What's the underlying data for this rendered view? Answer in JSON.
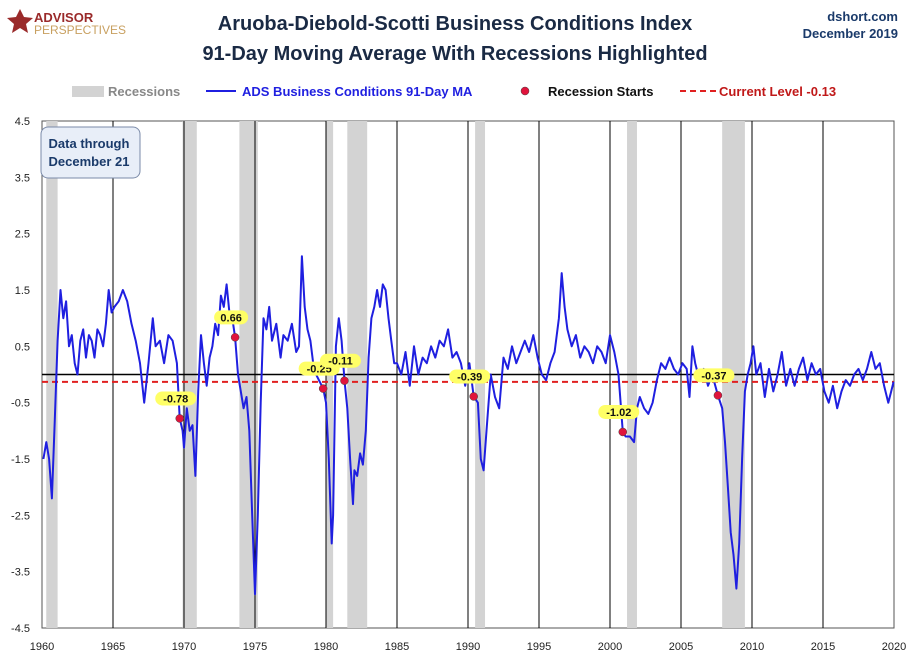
{
  "branding": {
    "logo_line1": "ADVISOR",
    "logo_line2": "PERSPECTIVES",
    "site": "dshort.com",
    "date": "December 2019"
  },
  "chart_data": {
    "type": "line",
    "title": "Aruoba-Diebold-Scotti Business Conditions Index",
    "subtitle": "91-Day Moving Average With Recessions Highlighted",
    "xlabel": "",
    "ylabel": "",
    "xlim": [
      1960,
      2020
    ],
    "ylim": [
      -4.5,
      4.5
    ],
    "x_ticks": [
      "1960",
      "1965",
      "1970",
      "1975",
      "1980",
      "1985",
      "1990",
      "1995",
      "2000",
      "2005",
      "2010",
      "2015",
      "2020"
    ],
    "y_ticks": [
      "4.5",
      "3.5",
      "2.5",
      "1.5",
      "0.5",
      "-0.5",
      "-1.5",
      "-2.5",
      "-3.5",
      "-4.5"
    ],
    "grid": "vertical",
    "legend_position": "top",
    "legend": {
      "recessions": "Recessions",
      "series": "ADS Business Conditions 91-Day MA",
      "starts": "Recession Starts",
      "current": "Current Level -0.13"
    },
    "annotation_box": {
      "line1": "Data through",
      "line2": "December 21"
    },
    "current_level": -0.13,
    "colors": {
      "series": "#1f1fe0",
      "recession": "#d3d3d3",
      "current": "#e02020",
      "start_marker": "#e0143c",
      "label_bg": "#ffff66"
    },
    "recessions": [
      [
        1960.3,
        1961.1
      ],
      [
        1969.9,
        1970.9
      ],
      [
        1973.9,
        1975.2
      ],
      [
        1980.0,
        1980.5
      ],
      [
        1981.5,
        1982.9
      ],
      [
        1990.5,
        1991.2
      ],
      [
        2001.2,
        2001.9
      ],
      [
        2007.9,
        2009.5
      ]
    ],
    "recession_starts": [
      {
        "year": 1969.7,
        "value": -0.78,
        "label": "-0.78"
      },
      {
        "year": 1973.6,
        "value": 0.66,
        "label": "0.66"
      },
      {
        "year": 1979.8,
        "value": -0.25,
        "label": "-0.25"
      },
      {
        "year": 1981.3,
        "value": -0.11,
        "label": "-0.11"
      },
      {
        "year": 1990.4,
        "value": -0.39,
        "label": "-0.39"
      },
      {
        "year": 2000.9,
        "value": -1.02,
        "label": "-1.02"
      },
      {
        "year": 2007.6,
        "value": -0.37,
        "label": "-0.37"
      }
    ],
    "series": [
      {
        "name": "ADS Business Conditions 91-Day MA",
        "points": [
          [
            1960.1,
            -1.5
          ],
          [
            1960.3,
            -1.2
          ],
          [
            1960.5,
            -1.5
          ],
          [
            1960.7,
            -2.2
          ],
          [
            1960.9,
            -0.8
          ],
          [
            1961.1,
            0.6
          ],
          [
            1961.3,
            1.5
          ],
          [
            1961.5,
            1.0
          ],
          [
            1961.7,
            1.3
          ],
          [
            1961.9,
            0.5
          ],
          [
            1962.1,
            0.7
          ],
          [
            1962.3,
            0.2
          ],
          [
            1962.5,
            0.0
          ],
          [
            1962.7,
            0.6
          ],
          [
            1962.9,
            0.8
          ],
          [
            1963.1,
            0.3
          ],
          [
            1963.3,
            0.7
          ],
          [
            1963.5,
            0.6
          ],
          [
            1963.7,
            0.3
          ],
          [
            1963.9,
            0.8
          ],
          [
            1964.1,
            0.7
          ],
          [
            1964.3,
            0.5
          ],
          [
            1964.5,
            0.9
          ],
          [
            1964.7,
            1.5
          ],
          [
            1964.9,
            1.1
          ],
          [
            1965.1,
            1.2
          ],
          [
            1965.4,
            1.3
          ],
          [
            1965.7,
            1.5
          ],
          [
            1966.0,
            1.3
          ],
          [
            1966.3,
            0.9
          ],
          [
            1966.6,
            0.6
          ],
          [
            1966.9,
            0.2
          ],
          [
            1967.2,
            -0.5
          ],
          [
            1967.5,
            0.2
          ],
          [
            1967.8,
            1.0
          ],
          [
            1968.0,
            0.5
          ],
          [
            1968.3,
            0.6
          ],
          [
            1968.6,
            0.2
          ],
          [
            1968.9,
            0.7
          ],
          [
            1969.2,
            0.6
          ],
          [
            1969.5,
            0.2
          ],
          [
            1969.7,
            -0.78
          ],
          [
            1969.9,
            -1.0
          ],
          [
            1970.0,
            -1.3
          ],
          [
            1970.2,
            -0.6
          ],
          [
            1970.4,
            -1.0
          ],
          [
            1970.6,
            -0.9
          ],
          [
            1970.8,
            -1.8
          ],
          [
            1971.0,
            -0.3
          ],
          [
            1971.2,
            0.7
          ],
          [
            1971.4,
            0.2
          ],
          [
            1971.6,
            -0.2
          ],
          [
            1971.8,
            0.3
          ],
          [
            1972.0,
            0.5
          ],
          [
            1972.2,
            0.9
          ],
          [
            1972.4,
            0.7
          ],
          [
            1972.6,
            1.4
          ],
          [
            1972.8,
            1.2
          ],
          [
            1973.0,
            1.6
          ],
          [
            1973.2,
            1.1
          ],
          [
            1973.4,
            1.0
          ],
          [
            1973.6,
            0.66
          ],
          [
            1973.8,
            0.0
          ],
          [
            1974.0,
            -0.3
          ],
          [
            1974.2,
            -0.6
          ],
          [
            1974.4,
            -0.4
          ],
          [
            1974.6,
            -1.0
          ],
          [
            1974.8,
            -2.5
          ],
          [
            1975.0,
            -3.9
          ],
          [
            1975.2,
            -2.5
          ],
          [
            1975.4,
            -0.5
          ],
          [
            1975.6,
            1.0
          ],
          [
            1975.8,
            0.8
          ],
          [
            1976.0,
            1.2
          ],
          [
            1976.2,
            0.6
          ],
          [
            1976.5,
            0.9
          ],
          [
            1976.8,
            0.3
          ],
          [
            1977.0,
            0.7
          ],
          [
            1977.3,
            0.6
          ],
          [
            1977.6,
            0.9
          ],
          [
            1977.9,
            0.4
          ],
          [
            1978.1,
            0.5
          ],
          [
            1978.3,
            2.1
          ],
          [
            1978.5,
            1.2
          ],
          [
            1978.7,
            0.8
          ],
          [
            1978.9,
            0.6
          ],
          [
            1979.1,
            0.2
          ],
          [
            1979.3,
            0.0
          ],
          [
            1979.5,
            -0.1
          ],
          [
            1979.8,
            -0.25
          ],
          [
            1980.0,
            -0.5
          ],
          [
            1980.2,
            -1.5
          ],
          [
            1980.4,
            -3.0
          ],
          [
            1980.5,
            -2.5
          ],
          [
            1980.7,
            0.5
          ],
          [
            1980.9,
            1.0
          ],
          [
            1981.1,
            0.6
          ],
          [
            1981.3,
            -0.11
          ],
          [
            1981.5,
            -0.6
          ],
          [
            1981.7,
            -1.5
          ],
          [
            1981.9,
            -2.3
          ],
          [
            1982.0,
            -1.7
          ],
          [
            1982.2,
            -1.8
          ],
          [
            1982.4,
            -1.4
          ],
          [
            1982.6,
            -1.6
          ],
          [
            1982.8,
            -1.0
          ],
          [
            1983.0,
            0.3
          ],
          [
            1983.2,
            1.0
          ],
          [
            1983.4,
            1.2
          ],
          [
            1983.6,
            1.5
          ],
          [
            1983.8,
            1.2
          ],
          [
            1984.0,
            1.6
          ],
          [
            1984.2,
            1.5
          ],
          [
            1984.4,
            1.0
          ],
          [
            1984.6,
            0.6
          ],
          [
            1984.8,
            0.2
          ],
          [
            1985.0,
            0.2
          ],
          [
            1985.3,
            0.0
          ],
          [
            1985.6,
            0.4
          ],
          [
            1985.9,
            -0.2
          ],
          [
            1986.2,
            0.5
          ],
          [
            1986.5,
            0.0
          ],
          [
            1986.8,
            0.3
          ],
          [
            1987.1,
            0.2
          ],
          [
            1987.4,
            0.5
          ],
          [
            1987.7,
            0.3
          ],
          [
            1988.0,
            0.6
          ],
          [
            1988.3,
            0.5
          ],
          [
            1988.6,
            0.8
          ],
          [
            1988.9,
            0.3
          ],
          [
            1989.2,
            0.4
          ],
          [
            1989.5,
            0.2
          ],
          [
            1989.8,
            -0.2
          ],
          [
            1990.1,
            0.2
          ],
          [
            1990.4,
            -0.39
          ],
          [
            1990.7,
            -0.5
          ],
          [
            1990.9,
            -1.5
          ],
          [
            1991.1,
            -1.7
          ],
          [
            1991.3,
            -1.0
          ],
          [
            1991.6,
            0.0
          ],
          [
            1991.9,
            -0.4
          ],
          [
            1992.2,
            -0.6
          ],
          [
            1992.5,
            0.3
          ],
          [
            1992.8,
            0.1
          ],
          [
            1993.1,
            0.5
          ],
          [
            1993.4,
            0.2
          ],
          [
            1993.7,
            0.4
          ],
          [
            1994.0,
            0.6
          ],
          [
            1994.3,
            0.4
          ],
          [
            1994.6,
            0.7
          ],
          [
            1994.9,
            0.3
          ],
          [
            1995.2,
            0.0
          ],
          [
            1995.5,
            -0.1
          ],
          [
            1995.8,
            0.2
          ],
          [
            1996.1,
            0.4
          ],
          [
            1996.4,
            1.0
          ],
          [
            1996.6,
            1.8
          ],
          [
            1996.8,
            1.2
          ],
          [
            1997.0,
            0.8
          ],
          [
            1997.3,
            0.5
          ],
          [
            1997.6,
            0.7
          ],
          [
            1997.9,
            0.3
          ],
          [
            1998.2,
            0.5
          ],
          [
            1998.5,
            0.4
          ],
          [
            1998.8,
            0.2
          ],
          [
            1999.1,
            0.5
          ],
          [
            1999.4,
            0.4
          ],
          [
            1999.7,
            0.2
          ],
          [
            2000.0,
            0.7
          ],
          [
            2000.3,
            0.4
          ],
          [
            2000.6,
            0.0
          ],
          [
            2000.9,
            -1.02
          ],
          [
            2001.1,
            -1.1
          ],
          [
            2001.4,
            -1.1
          ],
          [
            2001.7,
            -1.2
          ],
          [
            2001.9,
            -0.6
          ],
          [
            2002.1,
            -0.4
          ],
          [
            2002.4,
            -0.6
          ],
          [
            2002.7,
            -0.7
          ],
          [
            2003.0,
            -0.5
          ],
          [
            2003.3,
            -0.1
          ],
          [
            2003.6,
            0.2
          ],
          [
            2003.9,
            0.1
          ],
          [
            2004.2,
            0.3
          ],
          [
            2004.5,
            0.1
          ],
          [
            2004.8,
            0.0
          ],
          [
            2005.1,
            0.2
          ],
          [
            2005.4,
            0.1
          ],
          [
            2005.6,
            -0.4
          ],
          [
            2005.8,
            0.5
          ],
          [
            2006.0,
            0.2
          ],
          [
            2006.3,
            -0.1
          ],
          [
            2006.6,
            0.1
          ],
          [
            2006.9,
            -0.2
          ],
          [
            2007.2,
            0.0
          ],
          [
            2007.6,
            -0.37
          ],
          [
            2007.9,
            -0.6
          ],
          [
            2008.1,
            -1.2
          ],
          [
            2008.3,
            -2.0
          ],
          [
            2008.5,
            -2.8
          ],
          [
            2008.7,
            -3.2
          ],
          [
            2008.9,
            -3.8
          ],
          [
            2009.1,
            -3.0
          ],
          [
            2009.3,
            -1.5
          ],
          [
            2009.5,
            -0.3
          ],
          [
            2009.7,
            0.0
          ],
          [
            2009.9,
            0.2
          ],
          [
            2010.1,
            0.5
          ],
          [
            2010.3,
            0.0
          ],
          [
            2010.6,
            0.2
          ],
          [
            2010.9,
            -0.4
          ],
          [
            2011.2,
            0.1
          ],
          [
            2011.5,
            -0.3
          ],
          [
            2011.8,
            0.0
          ],
          [
            2012.1,
            0.4
          ],
          [
            2012.4,
            -0.2
          ],
          [
            2012.7,
            0.1
          ],
          [
            2013.0,
            -0.2
          ],
          [
            2013.3,
            0.1
          ],
          [
            2013.6,
            0.3
          ],
          [
            2013.9,
            -0.1
          ],
          [
            2014.2,
            0.2
          ],
          [
            2014.5,
            0.0
          ],
          [
            2014.8,
            0.1
          ],
          [
            2015.1,
            -0.3
          ],
          [
            2015.4,
            -0.5
          ],
          [
            2015.7,
            -0.2
          ],
          [
            2016.0,
            -0.6
          ],
          [
            2016.3,
            -0.3
          ],
          [
            2016.6,
            -0.1
          ],
          [
            2016.9,
            -0.2
          ],
          [
            2017.2,
            0.0
          ],
          [
            2017.5,
            0.1
          ],
          [
            2017.8,
            -0.1
          ],
          [
            2018.1,
            0.1
          ],
          [
            2018.4,
            0.4
          ],
          [
            2018.7,
            0.1
          ],
          [
            2019.0,
            0.2
          ],
          [
            2019.3,
            -0.2
          ],
          [
            2019.6,
            -0.5
          ],
          [
            2019.8,
            -0.3
          ],
          [
            2019.97,
            -0.13
          ]
        ]
      }
    ]
  }
}
